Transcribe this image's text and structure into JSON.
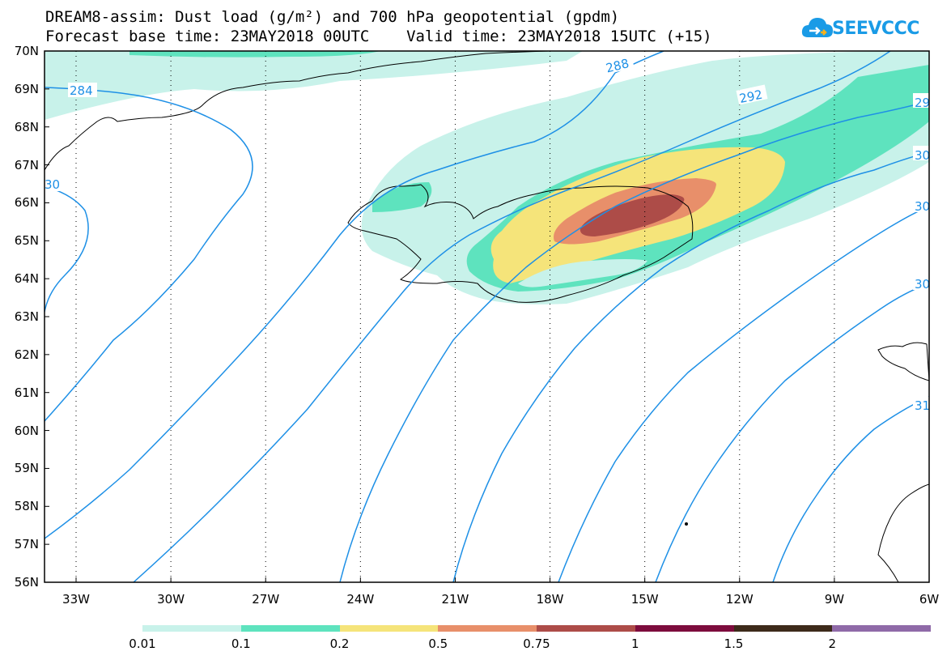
{
  "title": {
    "line1": "DREAM8-assim: Dust load (g/m²) and 700 hPa geopotential (gpdm)",
    "line2": "Forecast base time: 23MAY2018 00UTC    Valid time: 23MAY2018 15UTC (+15)"
  },
  "logo": {
    "text": "SEEVCCC",
    "icon": "cloud-logo-icon",
    "color": "#1a9be6"
  },
  "map": {
    "lat_labels": [
      "70N",
      "69N",
      "68N",
      "67N",
      "66N",
      "65N",
      "64N",
      "63N",
      "62N",
      "61N",
      "60N",
      "59N",
      "58N",
      "57N",
      "56N"
    ],
    "lon_labels": [
      "33W",
      "30W",
      "27W",
      "24W",
      "21W",
      "18W",
      "15W",
      "12W",
      "9W",
      "6W"
    ],
    "contour_color": "#1e90e6",
    "contour_labels": [
      {
        "text": "284"
      },
      {
        "text": "288"
      },
      {
        "text": "292"
      },
      {
        "text": "29"
      },
      {
        "text": "30"
      },
      {
        "text": "30"
      },
      {
        "text": "30"
      },
      {
        "text": "30"
      },
      {
        "text": "31"
      }
    ],
    "dust_colors": {
      "0.01": "#c8f2ea",
      "0.1": "#5ee3be",
      "0.2": "#f5e47a",
      "0.5": "#e88f6a",
      "0.75": "#ad4c48"
    }
  },
  "legend": {
    "colors": [
      "#c8f2ea",
      "#5ee3be",
      "#f5e47a",
      "#e88f6a",
      "#ad4c48",
      "#7d0c3d",
      "#3d2a1a",
      "#8f6aa8"
    ],
    "labels": [
      "0.01",
      "0.1",
      "0.2",
      "0.5",
      "0.75",
      "1",
      "1.5",
      "2"
    ]
  }
}
